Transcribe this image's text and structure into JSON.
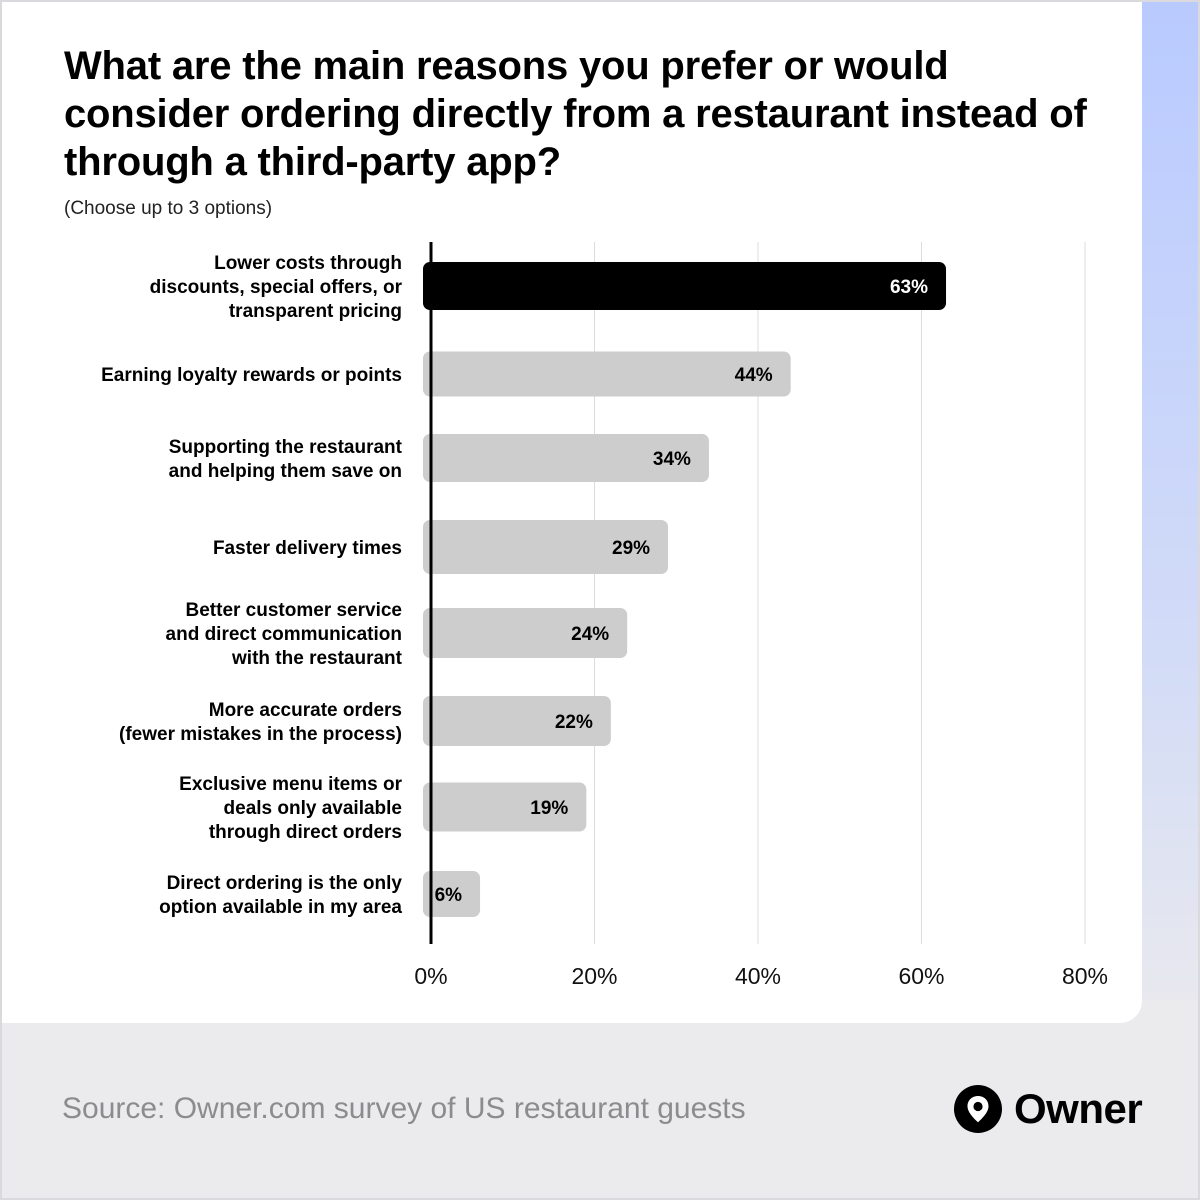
{
  "header": {
    "title": "What are the main reasons you prefer or would consider ordering directly from a restaurant instead of through a third-party app?",
    "subtitle": "(Choose up to 3 options)"
  },
  "footer": {
    "source": "Source: Owner.com survey of US restaurant guests",
    "brand": "Owner",
    "logo_icon": "location-pin-icon"
  },
  "colors": {
    "highlight_bar": "#000000",
    "bar": "#cdcdcd",
    "gridline": "#dcdcdc",
    "axis": "#000000",
    "background_accent": "#b9caff"
  },
  "chart_data": {
    "type": "bar",
    "orientation": "horizontal",
    "categories": [
      "Lower costs through discounts, special offers, or transparent pricing",
      "Earning loyalty rewards or points",
      "Supporting the restaurant and helping them save on",
      "Faster delivery times",
      "Better customer service and direct communication with the restaurant",
      "More accurate orders (fewer mistakes in the process)",
      "Exclusive menu items or deals only available through direct orders",
      "Direct ordering is the only option available in my area"
    ],
    "category_lines": [
      [
        "Lower costs through",
        "discounts, special offers, or",
        "transparent pricing"
      ],
      [
        "Earning loyalty rewards or points"
      ],
      [
        "Supporting the restaurant",
        "and helping them save on"
      ],
      [
        "Faster delivery times"
      ],
      [
        "Better customer service",
        "and direct communication",
        "with the restaurant"
      ],
      [
        "More accurate orders",
        "(fewer mistakes in the process)"
      ],
      [
        "Exclusive menu items or",
        "deals only available",
        "through direct orders"
      ],
      [
        "Direct ordering is the only",
        "option available in my area"
      ]
    ],
    "values": [
      63,
      44,
      34,
      29,
      24,
      22,
      19,
      6
    ],
    "data_labels": [
      "63%",
      "44%",
      "34%",
      "29%",
      "24%",
      "22%",
      "19%",
      "6%"
    ],
    "highlight_index": 0,
    "xlim": [
      0,
      80
    ],
    "xticks": [
      0,
      20,
      40,
      60,
      80
    ],
    "xtick_labels": [
      "0%",
      "20%",
      "40%",
      "60%",
      "80%"
    ],
    "grid": true,
    "xlabel": "",
    "ylabel": ""
  }
}
